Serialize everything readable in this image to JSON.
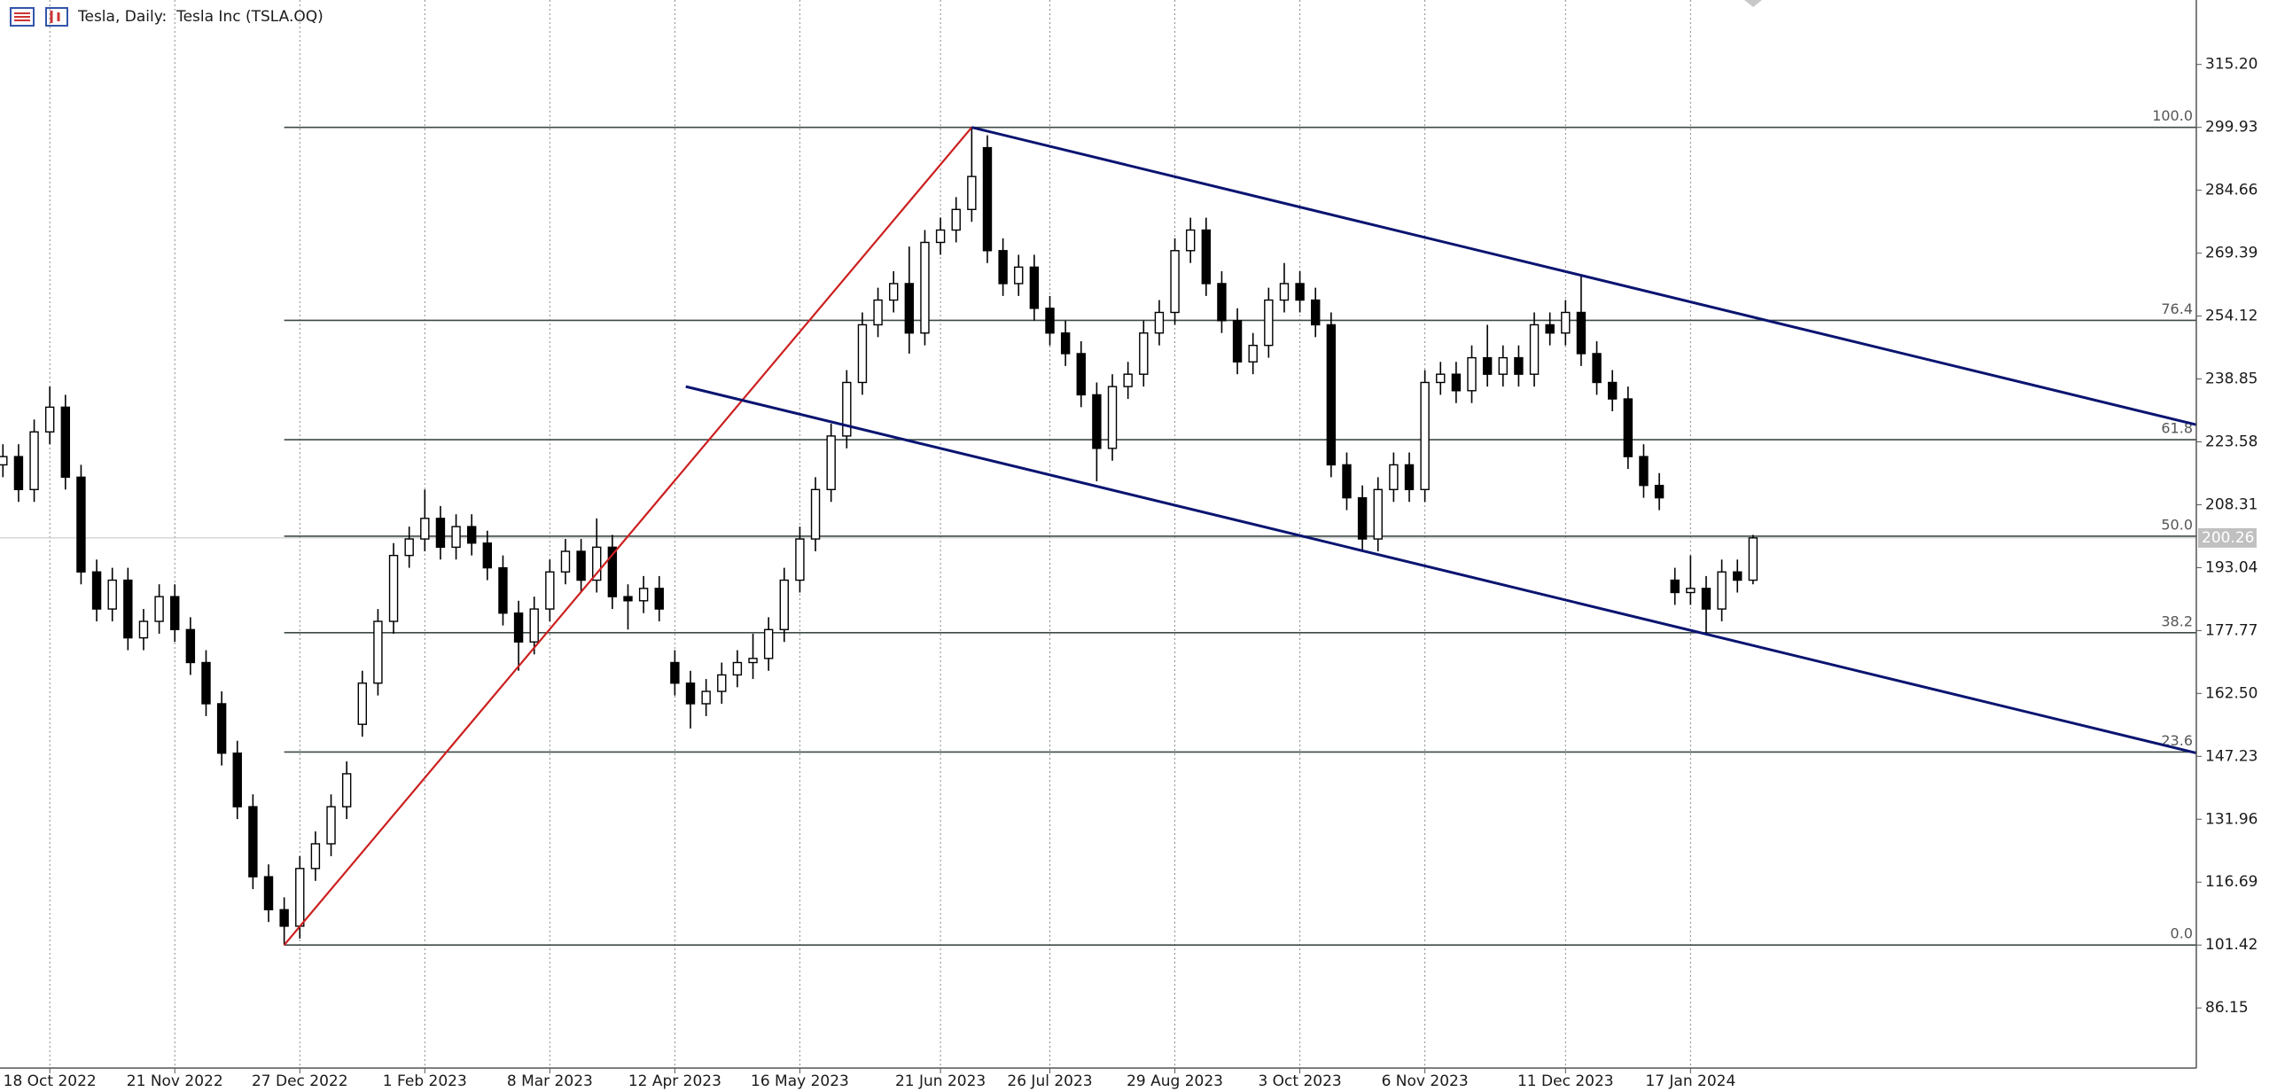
{
  "chart_data": {
    "type": "candlestick",
    "title": "Tesla, Daily:  Tesla Inc (TSLA.OQ)",
    "categories": [
      null,
      null,
      null,
      "18 Oct 2022",
      null,
      null,
      null,
      null,
      null,
      null,
      null,
      "21 Nov 2022",
      null,
      null,
      null,
      null,
      null,
      null,
      null,
      "27 Dec 2022",
      null,
      null,
      null,
      null,
      null,
      null,
      null,
      "1 Feb 2023",
      null,
      null,
      null,
      null,
      null,
      null,
      null,
      "8 Mar 2023",
      null,
      null,
      null,
      null,
      null,
      null,
      null,
      "12 Apr 2023",
      null,
      null,
      null,
      null,
      null,
      null,
      null,
      "16 May 2023",
      null,
      null,
      null,
      null,
      null,
      null,
      null,
      null,
      "21 Jun 2023",
      null,
      null,
      null,
      null,
      null,
      null,
      "26 Jul 2023",
      null,
      null,
      null,
      null,
      null,
      null,
      null,
      "29 Aug 2023",
      null,
      null,
      null,
      null,
      null,
      null,
      null,
      "3 Oct 2023",
      null,
      null,
      null,
      null,
      null,
      null,
      null,
      "6 Nov 2023",
      null,
      null,
      null,
      null,
      null,
      null,
      null,
      null,
      "11 Dec 2023",
      null,
      null,
      null,
      null,
      null,
      null,
      null,
      "17 Jan 2024",
      null,
      null,
      null,
      null
    ],
    "open": [
      218,
      220,
      212,
      226,
      232,
      215,
      192,
      183,
      190,
      176,
      180,
      186,
      178,
      170,
      160,
      148,
      135,
      118,
      110,
      106,
      120,
      126,
      135,
      155,
      165,
      180,
      196,
      200,
      205,
      198,
      203,
      199,
      193,
      182,
      175,
      183,
      192,
      197,
      190,
      198,
      186,
      185,
      188,
      170,
      165,
      160,
      163,
      167,
      170,
      171,
      178,
      190,
      200,
      212,
      225,
      238,
      252,
      258,
      262,
      250,
      272,
      275,
      280,
      295,
      270,
      262,
      266,
      256,
      250,
      245,
      235,
      222,
      237,
      240,
      250,
      255,
      270,
      275,
      262,
      253,
      243,
      247,
      258,
      262,
      258,
      252,
      218,
      210,
      200,
      212,
      218,
      212,
      238,
      240,
      236,
      244,
      240,
      244,
      240,
      252,
      250,
      255,
      245,
      238,
      234,
      220,
      213,
      190,
      187,
      188,
      183,
      192,
      190
    ],
    "high": [
      223,
      223,
      229,
      237,
      235,
      218,
      195,
      193,
      193,
      183,
      189,
      189,
      181,
      173,
      163,
      151,
      138,
      121,
      113,
      123,
      129,
      138,
      146,
      168,
      183,
      199,
      203,
      212,
      208,
      206,
      206,
      202,
      196,
      185,
      186,
      195,
      200,
      200,
      205,
      201,
      189,
      191,
      191,
      173,
      168,
      166,
      170,
      173,
      177,
      181,
      193,
      203,
      215,
      228,
      241,
      255,
      261,
      265,
      271,
      275,
      278,
      283,
      299.93,
      298,
      273,
      269,
      269,
      259,
      253,
      248,
      238,
      240,
      243,
      253,
      258,
      273,
      278,
      278,
      265,
      256,
      250,
      261,
      267,
      265,
      261,
      255,
      221,
      213,
      215,
      221,
      221,
      241,
      243,
      243,
      247,
      252,
      247,
      247,
      255,
      255,
      258,
      264,
      248,
      241,
      237,
      223,
      216,
      193,
      196,
      191,
      195,
      195,
      201
    ],
    "low": [
      215,
      209,
      209,
      223,
      212,
      189,
      180,
      180,
      173,
      173,
      177,
      175,
      167,
      157,
      145,
      132,
      115,
      107,
      101.42,
      103,
      117,
      123,
      132,
      152,
      162,
      177,
      193,
      197,
      195,
      195,
      196,
      190,
      179,
      168,
      172,
      180,
      189,
      187,
      187,
      183,
      178,
      182,
      180,
      162,
      154,
      157,
      160,
      164,
      166,
      168,
      175,
      187,
      197,
      209,
      222,
      235,
      249,
      255,
      245,
      247,
      269,
      272,
      277,
      267,
      259,
      259,
      253,
      247,
      242,
      232,
      214,
      219,
      234,
      237,
      247,
      252,
      267,
      259,
      250,
      240,
      240,
      244,
      255,
      255,
      249,
      215,
      207,
      197,
      197,
      209,
      209,
      209,
      235,
      233,
      233,
      237,
      237,
      237,
      237,
      247,
      247,
      242,
      235,
      231,
      217,
      210,
      207,
      184,
      184,
      177,
      180,
      187,
      189
    ],
    "close": [
      220,
      212,
      226,
      232,
      215,
      192,
      183,
      190,
      176,
      180,
      186,
      178,
      170,
      160,
      148,
      135,
      118,
      110,
      106,
      120,
      126,
      135,
      143,
      165,
      180,
      196,
      200,
      205,
      198,
      203,
      199,
      193,
      182,
      175,
      183,
      192,
      197,
      190,
      198,
      186,
      185,
      188,
      183,
      165,
      160,
      163,
      167,
      170,
      171,
      178,
      190,
      200,
      212,
      225,
      238,
      252,
      258,
      262,
      250,
      272,
      275,
      280,
      288,
      270,
      262,
      266,
      256,
      250,
      245,
      235,
      222,
      237,
      240,
      250,
      255,
      270,
      275,
      262,
      253,
      243,
      247,
      258,
      262,
      258,
      252,
      218,
      210,
      200,
      212,
      218,
      212,
      238,
      240,
      236,
      244,
      240,
      244,
      240,
      252,
      250,
      255,
      245,
      238,
      234,
      220,
      213,
      210,
      187,
      188,
      183,
      192,
      190,
      200.26
    ],
    "bull_color": "#ffffff",
    "bear_color": "#000000",
    "ylim": [
      71.55,
      330.85
    ],
    "yticks": [
      {
        "value": 315.2,
        "label": "315.20"
      },
      299.93,
      284.66,
      269.39,
      254.12,
      238.85,
      223.58,
      208.31,
      193.04,
      177.77,
      {
        "value": 162.5,
        "label": "162.50"
      },
      147.23,
      131.96,
      116.69,
      101.42,
      86.15
    ],
    "current_price": 200.26,
    "fibonacci": {
      "start": 18,
      "price_low": 101.42,
      "price_high": 299.93,
      "color": "#3d4a48",
      "levels": [
        {
          "value": 100,
          "label": "100.0"
        },
        76.4,
        61.8,
        {
          "value": 50,
          "label": "50.0"
        },
        38.2,
        23.6,
        {
          "value": 0,
          "label": "0.0"
        }
      ]
    },
    "trendlines": [
      {
        "color": "#cc1f1f",
        "x": [
          18,
          62
        ],
        "y": [
          101.42,
          299.93
        ]
      },
      {
        "color": "#0a1470",
        "x": [
          62,
          140.4
        ],
        "y": [
          299.93,
          227.7
        ]
      },
      {
        "color": "#0a1470",
        "x": [
          43.7,
          140.4
        ],
        "y": [
          237,
          148
        ]
      }
    ],
    "grid": true
  }
}
